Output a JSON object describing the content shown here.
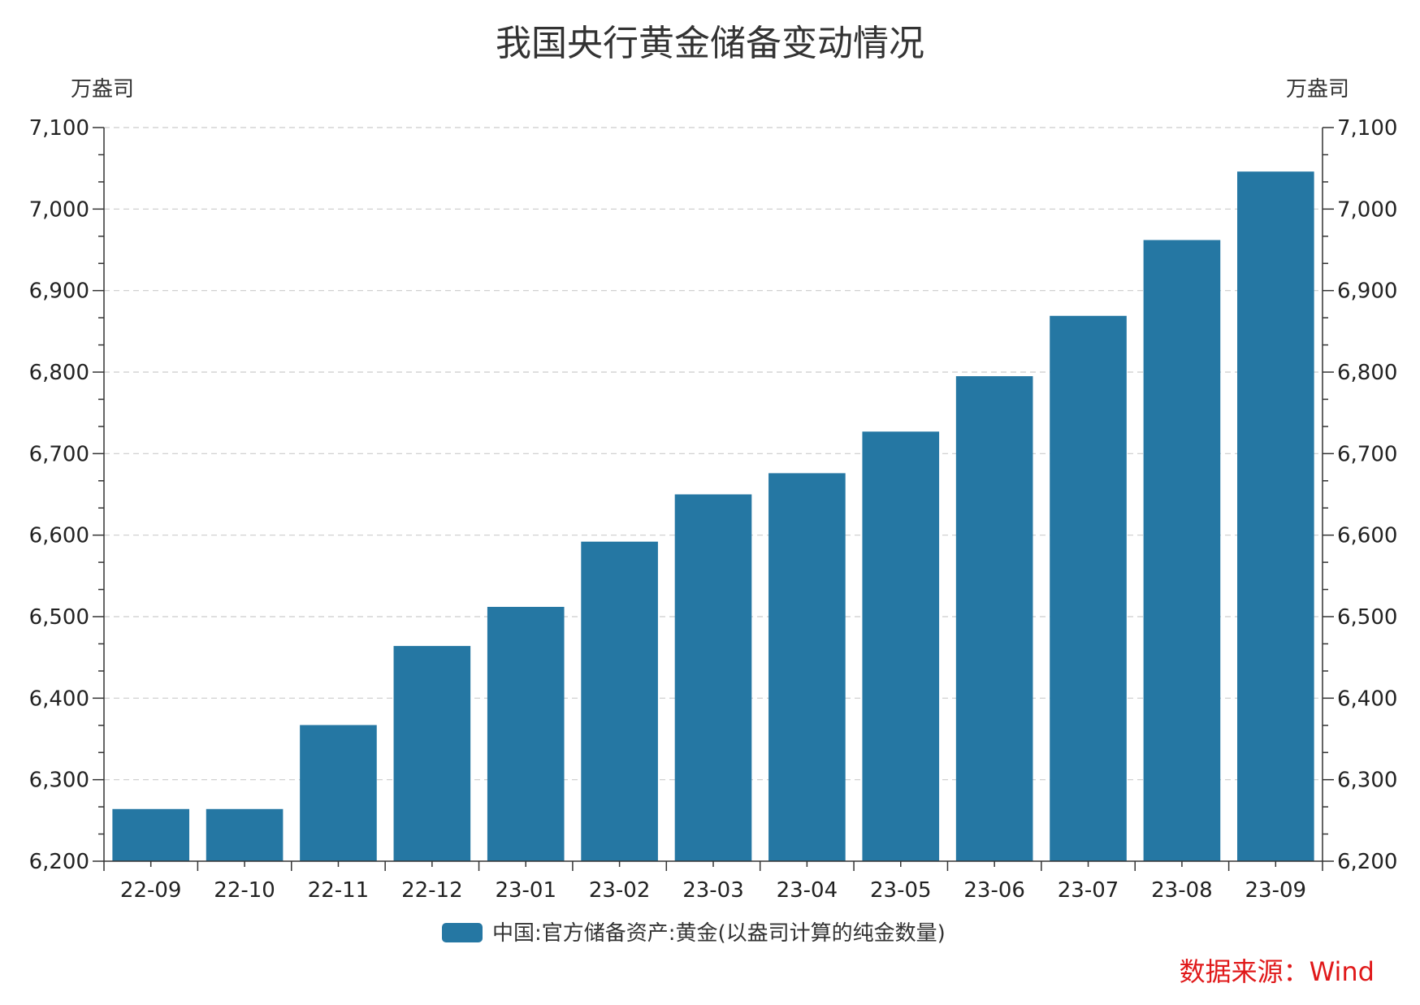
{
  "chart_data": {
    "type": "bar",
    "title": "我国央行黄金储备变动情况",
    "y_unit_left": "万盎司",
    "y_unit_right": "万盎司",
    "categories": [
      "22-09",
      "22-10",
      "22-11",
      "22-12",
      "23-01",
      "23-02",
      "23-03",
      "23-04",
      "23-05",
      "23-06",
      "23-07",
      "23-08",
      "23-09"
    ],
    "series": [
      {
        "name": "中国:官方储备资产:黄金(以盎司计算的纯金数量)",
        "values": [
          6264,
          6264,
          6367,
          6464,
          6512,
          6592,
          6650,
          6676,
          6727,
          6795,
          6869,
          6962,
          7046
        ]
      }
    ],
    "ylim": [
      6200,
      7100
    ],
    "yticks": [
      6200,
      6300,
      6400,
      6500,
      6600,
      6700,
      6800,
      6900,
      7000,
      7100
    ],
    "ytick_labels": [
      "6,200",
      "6,300",
      "6,400",
      "6,500",
      "6,600",
      "6,700",
      "6,800",
      "6,900",
      "7,000",
      "7,100"
    ],
    "grid": true,
    "legend_position": "bottom-center",
    "source": "数据来源：Wind",
    "colors": {
      "bar": "#2577a3",
      "source": "#e0191a",
      "axis": "#333333",
      "grid": "#cccccc"
    }
  }
}
